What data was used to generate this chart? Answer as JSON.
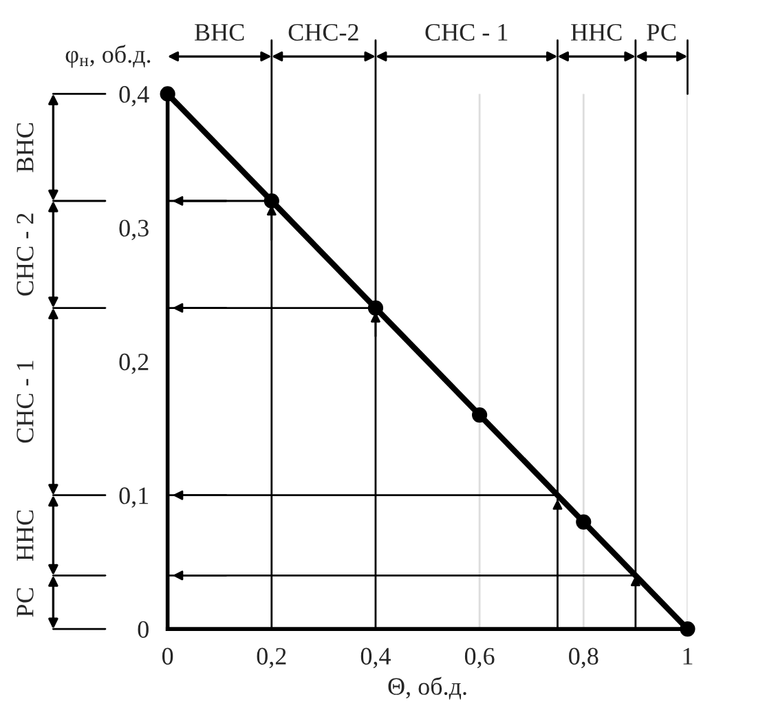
{
  "chart_data": {
    "type": "line",
    "xlabel": "Θ, об.д.",
    "ylabel": "φ$_{н}$, об.д.",
    "x": [
      0,
      0.2,
      0.4,
      0.6,
      0.8,
      1
    ],
    "series": [
      {
        "color": "#000000",
        "values": [
          0.4,
          0.32,
          0.24,
          0.16,
          0.08,
          0
        ]
      }
    ],
    "marker": "circle",
    "line_style": "solid",
    "xlim": [
      0,
      1
    ],
    "ylim": [
      0,
      0.4
    ],
    "xticks": [
      0,
      {
        "value": 0.2,
        "label": "0,2"
      },
      {
        "value": 0.4,
        "label": "0,4"
      },
      {
        "value": 0.6,
        "label": "0,6"
      },
      {
        "value": 0.8,
        "label": "0,8"
      },
      1
    ],
    "yticks": [
      0,
      {
        "value": 0.1,
        "label": "0,1"
      },
      {
        "value": 0.2,
        "label": "0,2"
      },
      {
        "value": 0.3,
        "label": "0,3"
      },
      {
        "value": 0.4,
        "label": "0,4"
      }
    ],
    "grid": "x",
    "ref_lines": [
      {
        "axis": "x",
        "value": 0.2,
        "color": "#000000"
      },
      {
        "axis": "x",
        "value": 0.4,
        "color": "#000000"
      },
      {
        "axis": "x",
        "value": 0.75,
        "color": "#000000"
      },
      {
        "axis": "x",
        "value": 0.9,
        "color": "#000000"
      },
      {
        "axis": "y",
        "value": 0.32,
        "color": "#000000"
      },
      {
        "axis": "y",
        "value": 0.24,
        "color": "#000000"
      },
      {
        "axis": "y",
        "value": 0.1,
        "color": "#000000"
      },
      {
        "axis": "y",
        "value": 0.04,
        "color": "#000000"
      }
    ],
    "annotations": [
      "ВНС",
      "СНС-2",
      "СНС - 1",
      "ННС",
      "РС",
      "ВНС",
      "СНС - 2",
      "СНС - 1",
      "ННС",
      "РС"
    ]
  }
}
